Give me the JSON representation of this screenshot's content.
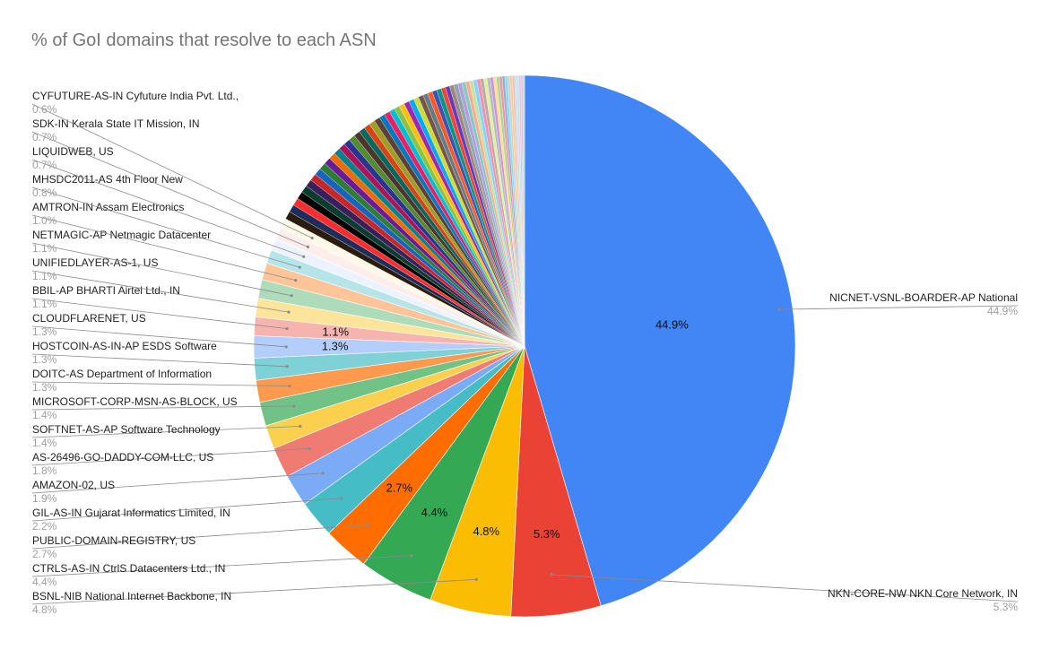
{
  "chart_data": {
    "type": "pie",
    "title": "% of GoI domains that resolve to each ASN",
    "slices": [
      {
        "name": "NICNET-VSNL-BOARDER-AP National",
        "value": 44.9,
        "label": "44.9%",
        "color": "#4285f4",
        "slice_label": "44.9%"
      },
      {
        "name": "NKN-CORE-NW NKN Core Network, IN",
        "value": 5.3,
        "label": "5.3%",
        "color": "#ea4335",
        "slice_label": "5.3%"
      },
      {
        "name": "BSNL-NIB National Internet Backbone, IN",
        "value": 4.8,
        "label": "4.8%",
        "color": "#fbbc04",
        "slice_label": "4.8%"
      },
      {
        "name": "CTRLS-AS-IN CtrlS Datacenters Ltd., IN",
        "value": 4.4,
        "label": "4.4%",
        "color": "#34a853",
        "slice_label": "4.4%"
      },
      {
        "name": "PUBLIC-DOMAIN-REGISTRY, US",
        "value": 2.7,
        "label": "2.7%",
        "color": "#ff6d01",
        "slice_label": "2.7%"
      },
      {
        "name": "GIL-AS-IN Gujarat Informatics Limited, IN",
        "value": 2.2,
        "label": "2.2%",
        "color": "#46bdc6"
      },
      {
        "name": "AMAZON-02, US",
        "value": 1.9,
        "label": "1.9%",
        "color": "#7baaf7"
      },
      {
        "name": "AS-26496-GO-DADDY-COM-LLC, US",
        "value": 1.8,
        "label": "1.8%",
        "color": "#f07b72"
      },
      {
        "name": "SOFTNET-AS-AP Software Technology",
        "value": 1.4,
        "label": "1.4%",
        "color": "#fcd04f"
      },
      {
        "name": "MICROSOFT-CORP-MSN-AS-BLOCK, US",
        "value": 1.4,
        "label": "1.4%",
        "color": "#71c287"
      },
      {
        "name": "DOITC-AS Department of Information",
        "value": 1.3,
        "label": "1.3%",
        "color": "#ff994d"
      },
      {
        "name": "HOSTCOIN-AS-IN-AP ESDS Software",
        "value": 1.3,
        "label": "1.3%",
        "color": "#7ed1d7"
      },
      {
        "name": "CLOUDFLARENET, US",
        "value": 1.3,
        "label": "1.3%",
        "color": "#b3cefb",
        "slice_label": "1.3%"
      },
      {
        "name": "BBIL-AP BHARTI Airtel Ltd., IN",
        "value": 1.1,
        "label": "1.1%",
        "color": "#f7b4ae",
        "slice_label": "1.1%"
      },
      {
        "name": "UNIFIEDLAYER-AS-1, US",
        "value": 1.1,
        "label": "1.1%",
        "color": "#fde49b"
      },
      {
        "name": "NETMAGIC-AP Netmagic Datacenter",
        "value": 1.1,
        "label": "1.1%",
        "color": "#aedcba"
      },
      {
        "name": "AMTRON-IN Assam Electronics",
        "value": 1.0,
        "label": "1.0%",
        "color": "#ffc599"
      },
      {
        "name": "MHSDC2011-AS 4th Floor New",
        "value": 0.8,
        "label": "0.8%",
        "color": "#b5e5e8"
      },
      {
        "name": "LIQUIDWEB, US",
        "value": 0.7,
        "label": "0.7%",
        "color": "#ecf3fe"
      },
      {
        "name": "SDK-IN Kerala State IT Mission, IN",
        "value": 0.7,
        "label": "0.7%",
        "color": "#fdeeec"
      },
      {
        "name": "CYFUTURE-AS-IN Cyfuture India Pvt. Ltd.,",
        "value": 0.6,
        "label": "0.6%",
        "color": "#fff8e6"
      }
    ],
    "other_small_slices_total": 17.0,
    "other_small_slices_colors": [
      "#2b1d0e",
      "#1f2d5a",
      "#ff2d2d",
      "#000000",
      "#0b3d2e",
      "#3a1f5d",
      "#c62828",
      "#1565c0",
      "#2e7d32",
      "#6a1b9a",
      "#ef6c00",
      "#00838f",
      "#ad1457",
      "#283593",
      "#558b2f",
      "#4e342e",
      "#00695c",
      "#d84315",
      "#9e9d24",
      "#5d4037",
      "#0277bd",
      "#e91e63",
      "#00bcd4",
      "#8bc34a",
      "#ffc107",
      "#9c27b0",
      "#03a9f4",
      "#cddc39",
      "#795548",
      "#607d8b",
      "#ff5722",
      "#3f51b5",
      "#009688",
      "#f44336",
      "#673ab7",
      "#a1887f",
      "#90a4ae",
      "#b39ddb",
      "#80cbc4",
      "#ffab91",
      "#c5e1a5",
      "#81d4fa",
      "#f48fb1",
      "#bcaaa4",
      "#e6ee9c",
      "#b0bec5",
      "#ce93d8",
      "#ffe082",
      "#a5d6a7",
      "#ef9a9a",
      "#9fa8da",
      "#80deea",
      "#d7ccc8",
      "#ffcc80",
      "#e1bee7",
      "#c8e6c9",
      "#bbdefb",
      "#f8bbd0",
      "#d1c4e9",
      "#b2dfdb"
    ],
    "legend_position": "callouts",
    "start_angle_deg": 0,
    "direction": "clockwise"
  }
}
